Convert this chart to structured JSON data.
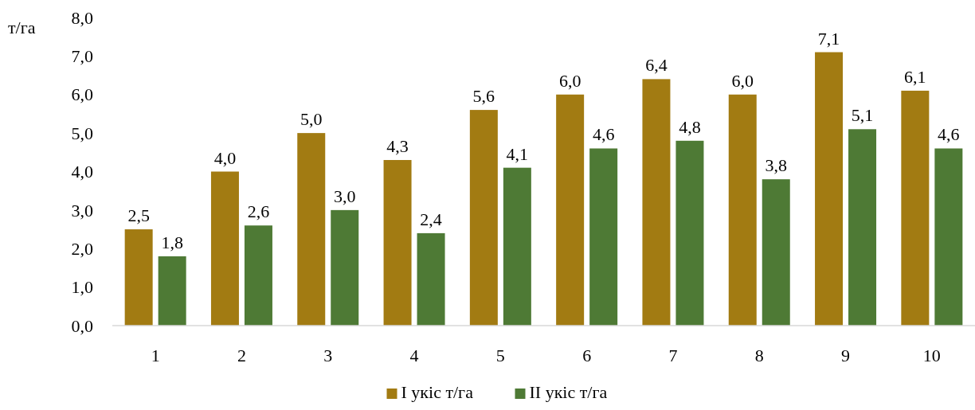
{
  "chart_data": {
    "type": "bar",
    "ylabel": "т/га",
    "categories": [
      "1",
      "2",
      "3",
      "4",
      "5",
      "6",
      "7",
      "8",
      "9",
      "10"
    ],
    "series": [
      {
        "name": "І укіс т/га",
        "color": "#a27b12",
        "values": [
          2.5,
          4.0,
          5.0,
          4.3,
          5.6,
          6.0,
          6.4,
          6.0,
          7.1,
          6.1
        ],
        "value_labels": [
          "2,5",
          "4,0",
          "5,0",
          "4,3",
          "5,6",
          "6,0",
          "6,4",
          "6,0",
          "7,1",
          "6,1"
        ]
      },
      {
        "name": "ІІ укіс т/га",
        "color": "#4e7a35",
        "values": [
          1.8,
          2.6,
          3.0,
          2.4,
          4.1,
          4.6,
          4.8,
          3.8,
          5.1,
          4.6
        ],
        "value_labels": [
          "1,8",
          "2,6",
          "3,0",
          "2,4",
          "4,1",
          "4,6",
          "4,8",
          "3,8",
          "5,1",
          "4,6"
        ]
      }
    ],
    "ylim": [
      0,
      8
    ],
    "yticks": [
      {
        "value": 0,
        "label": "0,0"
      },
      {
        "value": 1,
        "label": "1,0"
      },
      {
        "value": 2,
        "label": "2,0"
      },
      {
        "value": 3,
        "label": "3,0"
      },
      {
        "value": 4,
        "label": "4,0"
      },
      {
        "value": 5,
        "label": "5,0"
      },
      {
        "value": 6,
        "label": "6,0"
      },
      {
        "value": 7,
        "label": "7,0"
      },
      {
        "value": 8,
        "label": "8,0"
      }
    ],
    "grid": false,
    "legend": "bottom"
  }
}
